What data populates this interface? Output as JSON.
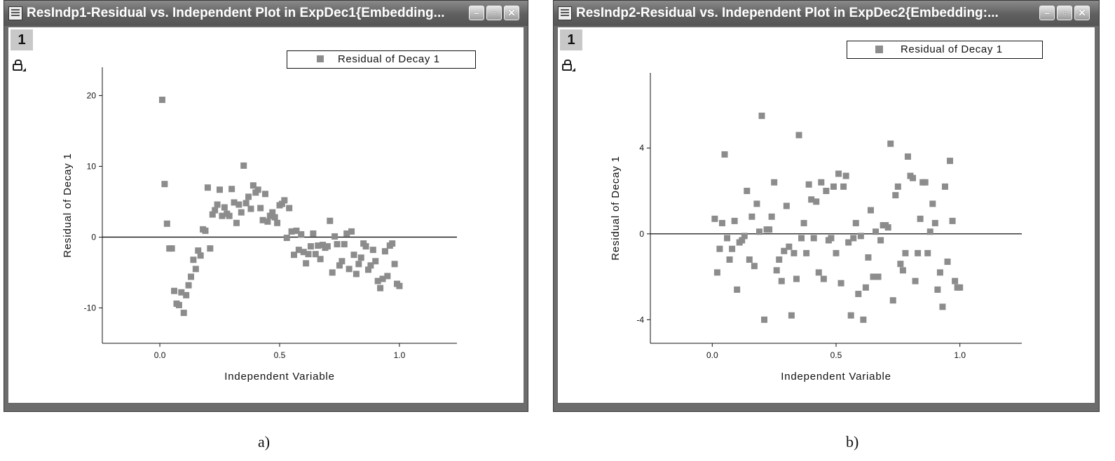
{
  "panels": [
    {
      "window": {
        "title": "ResIndp1-Residual vs. Independent Plot in ExpDec1{Embedding...",
        "minimize": "–",
        "maximize": "▫",
        "close": "✕"
      },
      "layer_number": "1",
      "legend_label": "Residual of Decay 1",
      "caption": "a)",
      "chart_data": {
        "type": "scatter",
        "xlabel": "Independent Variable",
        "ylabel": "Residual of Decay 1",
        "xlim": [
          -0.24,
          1.24
        ],
        "ylim": [
          -15,
          24
        ],
        "xticks": [
          0.0,
          0.5,
          1.0
        ],
        "xtick_labels": [
          "0.0",
          "0.5",
          "1.0"
        ],
        "yticks": [
          -10,
          0,
          10,
          20
        ],
        "ytick_labels": [
          "-10",
          "0",
          "10",
          "20"
        ],
        "zero_line": true,
        "grid": false,
        "legend_position": "top-right",
        "marker_color": "#8c8c8c",
        "series": [
          {
            "name": "Residual of Decay 1",
            "x": [
              0.01,
              0.02,
              0.03,
              0.04,
              0.05,
              0.06,
              0.07,
              0.08,
              0.09,
              0.1,
              0.11,
              0.12,
              0.13,
              0.14,
              0.15,
              0.16,
              0.17,
              0.18,
              0.19,
              0.2,
              0.21,
              0.22,
              0.23,
              0.24,
              0.25,
              0.26,
              0.27,
              0.28,
              0.29,
              0.3,
              0.31,
              0.32,
              0.33,
              0.34,
              0.35,
              0.36,
              0.37,
              0.38,
              0.39,
              0.4,
              0.41,
              0.42,
              0.43,
              0.44,
              0.45,
              0.46,
              0.47,
              0.48,
              0.49,
              0.5,
              0.51,
              0.52,
              0.53,
              0.54,
              0.55,
              0.56,
              0.57,
              0.58,
              0.59,
              0.6,
              0.61,
              0.62,
              0.63,
              0.64,
              0.65,
              0.66,
              0.67,
              0.68,
              0.69,
              0.7,
              0.71,
              0.72,
              0.73,
              0.74,
              0.75,
              0.76,
              0.77,
              0.78,
              0.79,
              0.8,
              0.81,
              0.82,
              0.83,
              0.84,
              0.85,
              0.86,
              0.87,
              0.88,
              0.89,
              0.9,
              0.91,
              0.92,
              0.93,
              0.94,
              0.95,
              0.96,
              0.97,
              0.98,
              0.99,
              1.0
            ],
            "y": [
              19.4,
              7.5,
              1.9,
              -1.6,
              -1.6,
              -7.6,
              -9.4,
              -9.6,
              -7.8,
              -10.7,
              -8.2,
              -6.8,
              -5.6,
              -3.2,
              -4.5,
              -1.9,
              -2.6,
              1.1,
              0.9,
              7.0,
              -1.6,
              3.2,
              3.8,
              4.6,
              6.7,
              3.0,
              4.2,
              3.3,
              3.0,
              6.8,
              4.9,
              2.0,
              4.6,
              3.5,
              10.1,
              4.8,
              5.7,
              4.0,
              7.3,
              6.3,
              6.7,
              4.1,
              2.4,
              6.1,
              2.2,
              3.0,
              3.5,
              2.8,
              2.0,
              4.5,
              4.7,
              5.2,
              -0.1,
              4.1,
              0.8,
              -2.5,
              0.9,
              -1.8,
              0.4,
              -2.1,
              -3.7,
              -2.4,
              -1.3,
              0.5,
              -2.4,
              -1.2,
              -3.1,
              -1.1,
              -1.5,
              -1.3,
              2.3,
              -5.0,
              0.1,
              -1.0,
              -4.0,
              -3.4,
              -1.0,
              0.5,
              -4.5,
              0.8,
              -2.5,
              -5.2,
              -3.8,
              -2.9,
              -0.9,
              -1.3,
              -4.6,
              -4.0,
              -1.8,
              -3.4,
              -6.2,
              -7.2,
              -5.9,
              -2.0,
              -5.5,
              -1.2,
              -0.9,
              -3.8,
              -6.6,
              -6.9
            ]
          }
        ]
      }
    },
    {
      "window": {
        "title": "ResIndp2-Residual vs. Independent Plot in ExpDec2{Embedding:...",
        "minimize": "–",
        "maximize": "▫",
        "close": "✕"
      },
      "layer_number": "1",
      "legend_label": "Residual of Decay 1",
      "caption": "b)",
      "chart_data": {
        "type": "scatter",
        "xlabel": "Independent Variable",
        "ylabel": "Residual of Decay 1",
        "xlim": [
          -0.25,
          1.25
        ],
        "ylim": [
          -5.1,
          7.5
        ],
        "xticks": [
          0.0,
          0.5,
          1.0
        ],
        "xtick_labels": [
          "0.0",
          "0.5",
          "1.0"
        ],
        "yticks": [
          -4,
          0,
          4
        ],
        "ytick_labels": [
          "-4",
          "0",
          "4"
        ],
        "zero_line": true,
        "grid": false,
        "legend_position": "top-right",
        "marker_color": "#8c8c8c",
        "series": [
          {
            "name": "Residual of Decay 1",
            "x": [
              0.01,
              0.02,
              0.03,
              0.04,
              0.05,
              0.06,
              0.07,
              0.08,
              0.09,
              0.1,
              0.11,
              0.12,
              0.13,
              0.14,
              0.15,
              0.16,
              0.17,
              0.18,
              0.19,
              0.2,
              0.21,
              0.22,
              0.23,
              0.24,
              0.25,
              0.26,
              0.27,
              0.28,
              0.29,
              0.3,
              0.31,
              0.32,
              0.33,
              0.34,
              0.35,
              0.36,
              0.37,
              0.38,
              0.39,
              0.4,
              0.41,
              0.42,
              0.43,
              0.44,
              0.45,
              0.46,
              0.47,
              0.48,
              0.49,
              0.5,
              0.51,
              0.52,
              0.53,
              0.54,
              0.55,
              0.56,
              0.57,
              0.58,
              0.59,
              0.6,
              0.61,
              0.62,
              0.63,
              0.64,
              0.65,
              0.66,
              0.67,
              0.68,
              0.69,
              0.7,
              0.71,
              0.72,
              0.73,
              0.74,
              0.75,
              0.76,
              0.77,
              0.78,
              0.79,
              0.8,
              0.81,
              0.82,
              0.83,
              0.84,
              0.85,
              0.86,
              0.87,
              0.88,
              0.89,
              0.9,
              0.91,
              0.92,
              0.93,
              0.94,
              0.95,
              0.96,
              0.97,
              0.98,
              0.99,
              1.0
            ],
            "y": [
              0.7,
              -1.8,
              -0.7,
              0.5,
              3.7,
              -0.2,
              -1.2,
              -0.7,
              0.6,
              -2.6,
              -0.4,
              -0.3,
              -0.1,
              2.0,
              -1.2,
              0.8,
              -1.5,
              1.4,
              0.1,
              5.5,
              -4.0,
              0.2,
              0.2,
              0.8,
              2.4,
              -1.7,
              -1.2,
              -2.2,
              -0.8,
              1.3,
              -0.6,
              -3.8,
              -0.9,
              -2.1,
              4.6,
              -0.2,
              0.5,
              -0.9,
              2.3,
              1.6,
              -0.2,
              1.5,
              -1.8,
              2.4,
              -2.1,
              2.0,
              -0.3,
              -0.2,
              2.2,
              -0.9,
              2.8,
              -2.3,
              2.2,
              2.7,
              -0.4,
              -3.8,
              -0.2,
              0.5,
              -2.8,
              -0.1,
              -4.0,
              -2.5,
              -1.1,
              1.1,
              -2.0,
              0.1,
              -2.0,
              -0.3,
              0.4,
              0.4,
              0.3,
              4.2,
              -3.1,
              1.8,
              2.2,
              -1.4,
              -1.7,
              -0.9,
              3.6,
              2.7,
              2.6,
              -2.2,
              -0.9,
              0.7,
              2.4,
              2.4,
              -0.9,
              0.1,
              1.4,
              0.5,
              -2.6,
              -1.8,
              -3.4,
              2.2,
              -1.3,
              3.4,
              0.6,
              -2.2,
              -2.5,
              -2.5
            ]
          }
        ]
      }
    }
  ]
}
